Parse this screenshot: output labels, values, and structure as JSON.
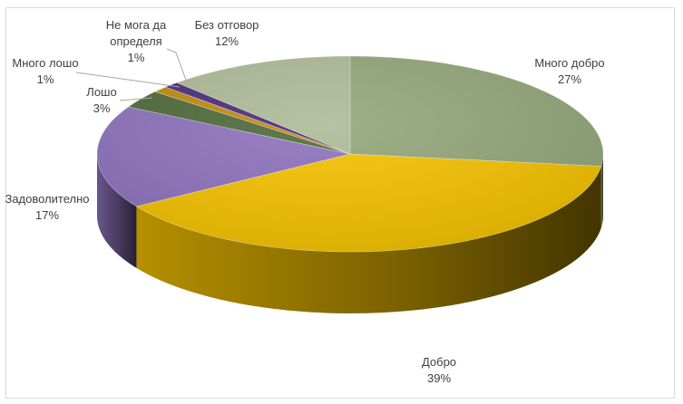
{
  "chart_data": {
    "type": "pie",
    "style": "3d",
    "title": "",
    "slices": [
      {
        "label": "Много добро",
        "value": 27,
        "percent_label": "27%",
        "color": "#94a77b"
      },
      {
        "label": "Добро",
        "value": 39,
        "percent_label": "39%",
        "color": "#f5c200"
      },
      {
        "label": "Задоволително",
        "value": 17,
        "percent_label": "17%",
        "color": "#8e72bd"
      },
      {
        "label": "Лошо",
        "value": 3,
        "percent_label": "3%",
        "color": "#4f6a3a"
      },
      {
        "label": "Много лошо",
        "value": 1,
        "percent_label": "1%",
        "color": "#c08a10"
      },
      {
        "label": "Не мога да определя",
        "label_lines": [
          "Не мога да",
          "определя"
        ],
        "value": 1,
        "percent_label": "1%",
        "color": "#4a2d7a"
      },
      {
        "label": "Без отговор",
        "value": 12,
        "percent_label": "12%",
        "color": "#aebb98"
      }
    ],
    "legend": "none"
  }
}
